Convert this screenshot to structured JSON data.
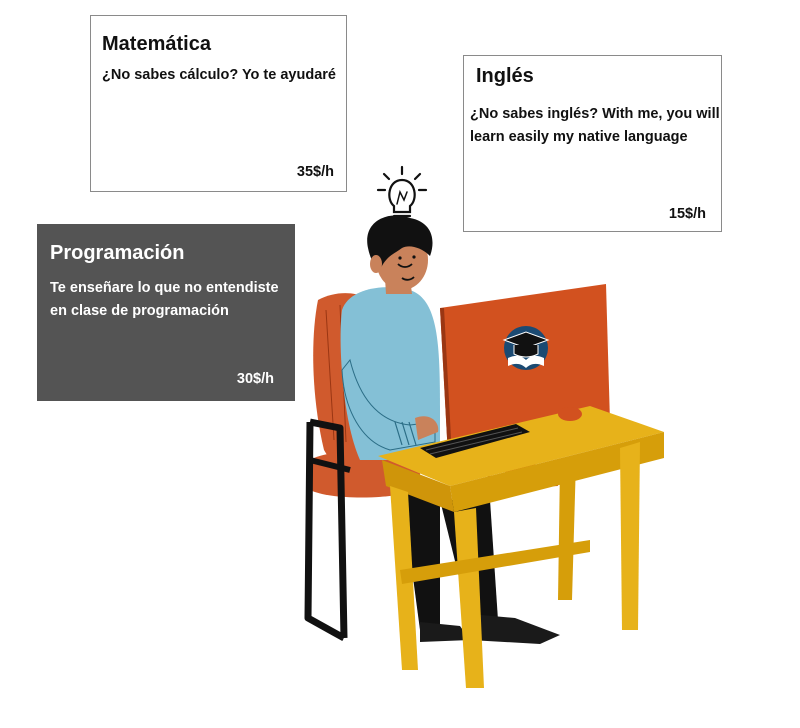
{
  "cards": {
    "math": {
      "title": "Matemática",
      "description": "¿No sabes cálculo? Yo te ayudaré",
      "price": "35$/h"
    },
    "english": {
      "title": "Inglés",
      "description": "¿No sabes inglés? With me, you will learn easily my native language",
      "price": "15$/h"
    },
    "programming": {
      "title": "Programación",
      "description": "Te enseñare lo que no entendiste en clase de programación",
      "price": "30$/h"
    }
  },
  "illustration": {
    "subject": "student-at-computer",
    "icons": [
      "lightbulb-icon",
      "graduation-book-logo-icon"
    ]
  },
  "colors": {
    "desk": "#e7b21a",
    "monitor": "#d2511f",
    "chair": "#d05a2d",
    "sweater": "#84c0d6",
    "dark_card": "#545454",
    "card_border": "#8a8a8a"
  }
}
